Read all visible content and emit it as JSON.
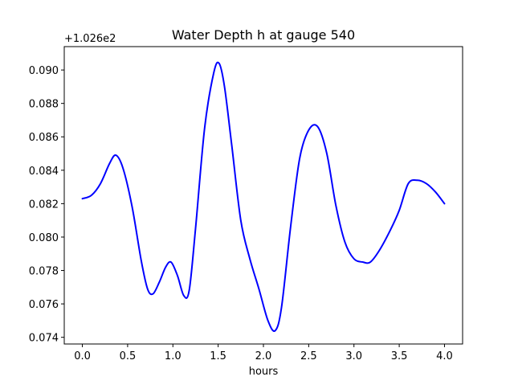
{
  "chart_data": {
    "type": "line",
    "title": "Water Depth h at gauge 540",
    "xlabel": "hours",
    "ylabel": "",
    "y_offset_label": "+1.026e2",
    "xlim": [
      -0.2,
      4.2
    ],
    "ylim": [
      0.0736,
      0.0914
    ],
    "x_ticks": [
      0.0,
      0.5,
      1.0,
      1.5,
      2.0,
      2.5,
      3.0,
      3.5,
      4.0
    ],
    "x_tick_labels": [
      "0.0",
      "0.5",
      "1.0",
      "1.5",
      "2.0",
      "2.5",
      "3.0",
      "3.5",
      "4.0"
    ],
    "y_ticks": [
      0.074,
      0.076,
      0.078,
      0.08,
      0.082,
      0.084,
      0.086,
      0.088,
      0.09
    ],
    "y_tick_labels": [
      "0.074",
      "0.076",
      "0.078",
      "0.080",
      "0.082",
      "0.084",
      "0.086",
      "0.088",
      "0.090"
    ],
    "grid": false,
    "series": [
      {
        "color": "#0000ff",
        "x": [
          0.0,
          0.1,
          0.2,
          0.3,
          0.37,
          0.45,
          0.55,
          0.65,
          0.72,
          0.78,
          0.85,
          0.92,
          0.98,
          1.05,
          1.12,
          1.18,
          1.25,
          1.35,
          1.45,
          1.51,
          1.57,
          1.65,
          1.75,
          1.85,
          1.95,
          2.05,
          2.13,
          2.2,
          2.3,
          2.4,
          2.5,
          2.6,
          2.7,
          2.8,
          2.9,
          3.0,
          3.1,
          3.18,
          3.28,
          3.4,
          3.5,
          3.6,
          3.7,
          3.8,
          3.9,
          4.0
        ],
        "y": [
          0.0823,
          0.0825,
          0.0832,
          0.0844,
          0.0849,
          0.0841,
          0.0818,
          0.0786,
          0.0769,
          0.0766,
          0.0773,
          0.0782,
          0.0785,
          0.0777,
          0.0765,
          0.0768,
          0.0805,
          0.0865,
          0.0898,
          0.0904,
          0.089,
          0.0855,
          0.081,
          0.0787,
          0.0769,
          0.075,
          0.0744,
          0.0758,
          0.0806,
          0.0847,
          0.0864,
          0.0866,
          0.085,
          0.0819,
          0.0797,
          0.0787,
          0.0785,
          0.0785,
          0.0792,
          0.0804,
          0.0816,
          0.0832,
          0.0834,
          0.0832,
          0.0827,
          0.082
        ]
      }
    ]
  }
}
